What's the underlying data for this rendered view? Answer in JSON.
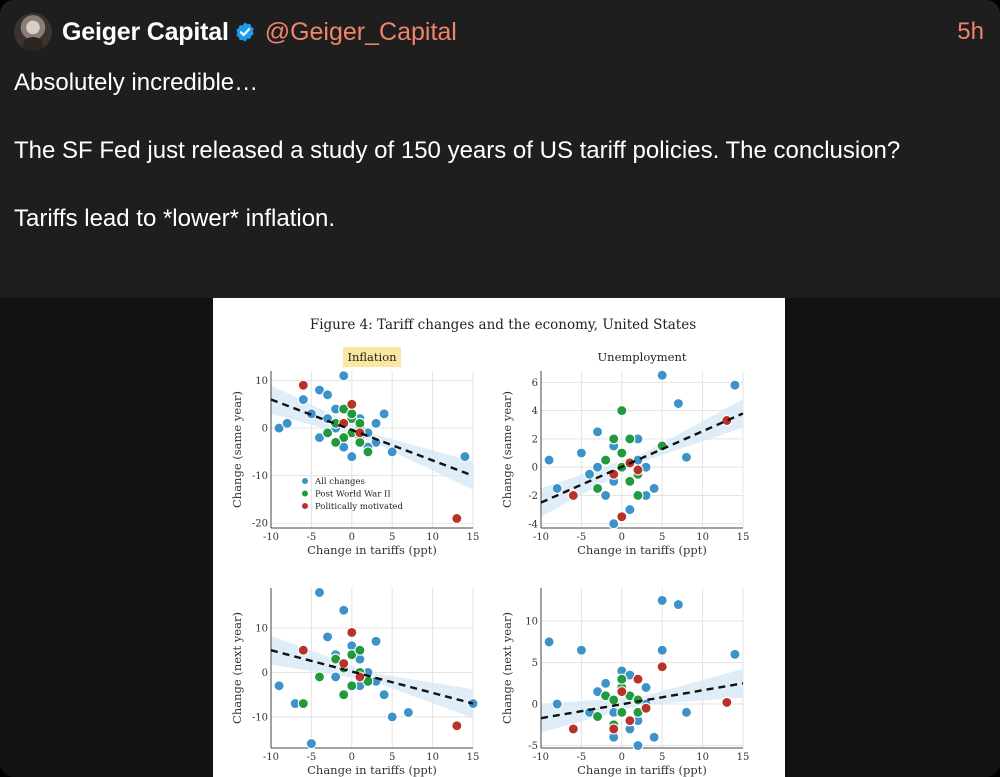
{
  "tweet": {
    "display_name": "Geiger Capital",
    "handle": "@Geiger_Capital",
    "timestamp": "5h",
    "text": "Absolutely incredible…\n\nThe SF Fed just released a study of 150 years of US tariff policies. The conclusion?\n\nTariffs lead to *lower* inflation.",
    "colors": {
      "background": "#1e1e1f",
      "accent": "#f0836a",
      "verified": "#1d9bf0"
    }
  },
  "figure": {
    "title": "Figure 4: Tariff changes and the economy, United States",
    "legend": [
      "All changes",
      "Post World War II",
      "Politically motivated"
    ],
    "colors": {
      "all": "#3b93c9",
      "postwar": "#1f9a3c",
      "political": "#b8322a"
    }
  },
  "chart_data": [
    {
      "type": "scatter",
      "title": "Inflation",
      "xlabel": "Change in tariffs (ppt)",
      "ylabel": "Change (same year)",
      "xlim": [
        -10,
        15
      ],
      "ylim": [
        -21,
        12
      ],
      "xticks": [
        -10,
        -5,
        0,
        5,
        10,
        15
      ],
      "yticks": [
        -20,
        -10,
        0,
        10
      ],
      "fit": [
        [
          -10,
          6
        ],
        [
          15,
          -10
        ]
      ],
      "series": [
        {
          "name": "All changes",
          "points": [
            [
              -9,
              0
            ],
            [
              -8,
              1
            ],
            [
              -6,
              6
            ],
            [
              -5,
              3
            ],
            [
              -4,
              8
            ],
            [
              -3,
              7
            ],
            [
              -3,
              2
            ],
            [
              -2,
              0
            ],
            [
              -1,
              11
            ],
            [
              1,
              2
            ],
            [
              2,
              -1
            ],
            [
              3,
              -3
            ],
            [
              4,
              3
            ],
            [
              5,
              -5
            ],
            [
              -4,
              -2
            ],
            [
              -1,
              -4
            ],
            [
              0,
              -6
            ],
            [
              2,
              -4
            ],
            [
              14,
              -6
            ],
            [
              -2,
              4
            ],
            [
              3,
              1
            ],
            [
              1,
              -2
            ]
          ]
        },
        {
          "name": "Post World War II",
          "points": [
            [
              -3,
              -1
            ],
            [
              -2,
              1
            ],
            [
              -1,
              4
            ],
            [
              0,
              2
            ],
            [
              1,
              0
            ],
            [
              0,
              -1
            ],
            [
              -1,
              -2
            ],
            [
              1,
              -3
            ],
            [
              2,
              -5
            ],
            [
              0,
              3
            ],
            [
              -2,
              -3
            ],
            [
              1,
              1
            ]
          ]
        },
        {
          "name": "Politically motivated",
          "points": [
            [
              -6,
              9
            ],
            [
              -1,
              1
            ],
            [
              0,
              5
            ],
            [
              1,
              -1
            ],
            [
              13,
              -19
            ]
          ]
        }
      ]
    },
    {
      "type": "scatter",
      "title": "Unemployment",
      "xlabel": "Change in tariffs (ppt)",
      "ylabel": "Change (same year)",
      "xlim": [
        -10,
        15
      ],
      "ylim": [
        -4.3,
        6.8
      ],
      "xticks": [
        -10,
        -5,
        0,
        5,
        10,
        15
      ],
      "yticks": [
        -4,
        -2,
        0,
        2,
        4,
        6
      ],
      "fit": [
        [
          -10,
          -2.5
        ],
        [
          15,
          3.8
        ]
      ],
      "series": [
        {
          "name": "All changes",
          "points": [
            [
              -9,
              0.5
            ],
            [
              -8,
              -1.5
            ],
            [
              -5,
              1
            ],
            [
              -4,
              -0.5
            ],
            [
              -3,
              0
            ],
            [
              -3,
              2.5
            ],
            [
              -2,
              -2
            ],
            [
              -1,
              -1
            ],
            [
              -1,
              1.5
            ],
            [
              1,
              -3
            ],
            [
              2,
              0.5
            ],
            [
              3,
              -2
            ],
            [
              4,
              -1.5
            ],
            [
              5,
              6.5
            ],
            [
              7,
              4.5
            ],
            [
              8,
              0.7
            ],
            [
              14,
              5.8
            ],
            [
              -1,
              -4
            ],
            [
              2,
              2
            ],
            [
              3,
              0
            ]
          ]
        },
        {
          "name": "Post World War II",
          "points": [
            [
              -2,
              0.5
            ],
            [
              -1,
              -0.5
            ],
            [
              0,
              4
            ],
            [
              0,
              1
            ],
            [
              1,
              -1
            ],
            [
              1,
              2
            ],
            [
              2,
              -0.5
            ],
            [
              -3,
              -1.5
            ],
            [
              0,
              0
            ],
            [
              2,
              -2
            ],
            [
              -1,
              2
            ],
            [
              5,
              1.5
            ]
          ]
        },
        {
          "name": "Politically motivated",
          "points": [
            [
              -6,
              -2
            ],
            [
              -1,
              -0.5
            ],
            [
              0,
              -3.5
            ],
            [
              1,
              0.3
            ],
            [
              2,
              -0.2
            ],
            [
              13,
              3.3
            ]
          ]
        }
      ]
    },
    {
      "type": "scatter",
      "title": "",
      "xlabel": "Change in tariffs (ppt)",
      "ylabel": "Change (next year)",
      "xlim": [
        -10,
        15
      ],
      "ylim": [
        -17,
        19
      ],
      "xticks": [
        -10,
        -5,
        0,
        5,
        10,
        15
      ],
      "yticks": [
        -10,
        0,
        10
      ],
      "fit": [
        [
          -10,
          5
        ],
        [
          15,
          -7
        ]
      ],
      "series": [
        {
          "name": "All changes",
          "points": [
            [
              -9,
              -3
            ],
            [
              -7,
              -7
            ],
            [
              -5,
              -16
            ],
            [
              -4,
              18
            ],
            [
              -3,
              8
            ],
            [
              -2,
              4
            ],
            [
              -1,
              14
            ],
            [
              0,
              6
            ],
            [
              1,
              3
            ],
            [
              2,
              0
            ],
            [
              3,
              7
            ],
            [
              4,
              -5
            ],
            [
              5,
              -10
            ],
            [
              7,
              -9
            ],
            [
              -2,
              -1
            ],
            [
              1,
              -3
            ],
            [
              15,
              -7
            ],
            [
              3,
              -2
            ]
          ]
        },
        {
          "name": "Post World War II",
          "points": [
            [
              -4,
              -1
            ],
            [
              -2,
              3
            ],
            [
              -1,
              1
            ],
            [
              0,
              -3
            ],
            [
              0,
              4
            ],
            [
              1,
              0
            ],
            [
              2,
              -2
            ],
            [
              -1,
              -5
            ],
            [
              1,
              5
            ],
            [
              -6,
              -7
            ]
          ]
        },
        {
          "name": "Politically motivated",
          "points": [
            [
              -6,
              5
            ],
            [
              -1,
              2
            ],
            [
              0,
              9
            ],
            [
              1,
              -1
            ],
            [
              13,
              -12
            ]
          ]
        }
      ]
    },
    {
      "type": "scatter",
      "title": "",
      "xlabel": "Change in tariffs (ppt)",
      "ylabel": "Change (next year)",
      "xlim": [
        -10,
        15
      ],
      "ylim": [
        -5.3,
        14
      ],
      "xticks": [
        -10,
        -5,
        0,
        5,
        10,
        15
      ],
      "yticks": [
        -5,
        0,
        5,
        10
      ],
      "fit": [
        [
          -10,
          -1.7
        ],
        [
          15,
          2.5
        ]
      ],
      "series": [
        {
          "name": "All changes",
          "points": [
            [
              -9,
              7.5
            ],
            [
              -8,
              0
            ],
            [
              -5,
              6.5
            ],
            [
              -3,
              1.5
            ],
            [
              -2,
              2.5
            ],
            [
              -1,
              -1
            ],
            [
              0,
              4
            ],
            [
              1,
              3.5
            ],
            [
              2,
              -2
            ],
            [
              3,
              0
            ],
            [
              4,
              -4
            ],
            [
              5,
              6.5
            ],
            [
              5,
              12.5
            ],
            [
              7,
              12
            ],
            [
              8,
              -1
            ],
            [
              14,
              6
            ],
            [
              -1,
              -4
            ],
            [
              2,
              -5
            ],
            [
              -4,
              -1
            ],
            [
              1,
              -3
            ],
            [
              3,
              2
            ]
          ]
        },
        {
          "name": "Post World War II",
          "points": [
            [
              -3,
              -1.5
            ],
            [
              -2,
              1
            ],
            [
              -1,
              0.5
            ],
            [
              0,
              2
            ],
            [
              0,
              -1
            ],
            [
              1,
              1
            ],
            [
              1,
              -2
            ],
            [
              2,
              0.5
            ],
            [
              -1,
              -2.5
            ],
            [
              0,
              3
            ],
            [
              2,
              -1
            ]
          ]
        },
        {
          "name": "Politically motivated",
          "points": [
            [
              -6,
              -3
            ],
            [
              -1,
              -3
            ],
            [
              0,
              1.5
            ],
            [
              1,
              -2
            ],
            [
              2,
              3
            ],
            [
              3,
              -0.5
            ],
            [
              5,
              4.5
            ],
            [
              13,
              0.2
            ]
          ]
        }
      ]
    }
  ]
}
